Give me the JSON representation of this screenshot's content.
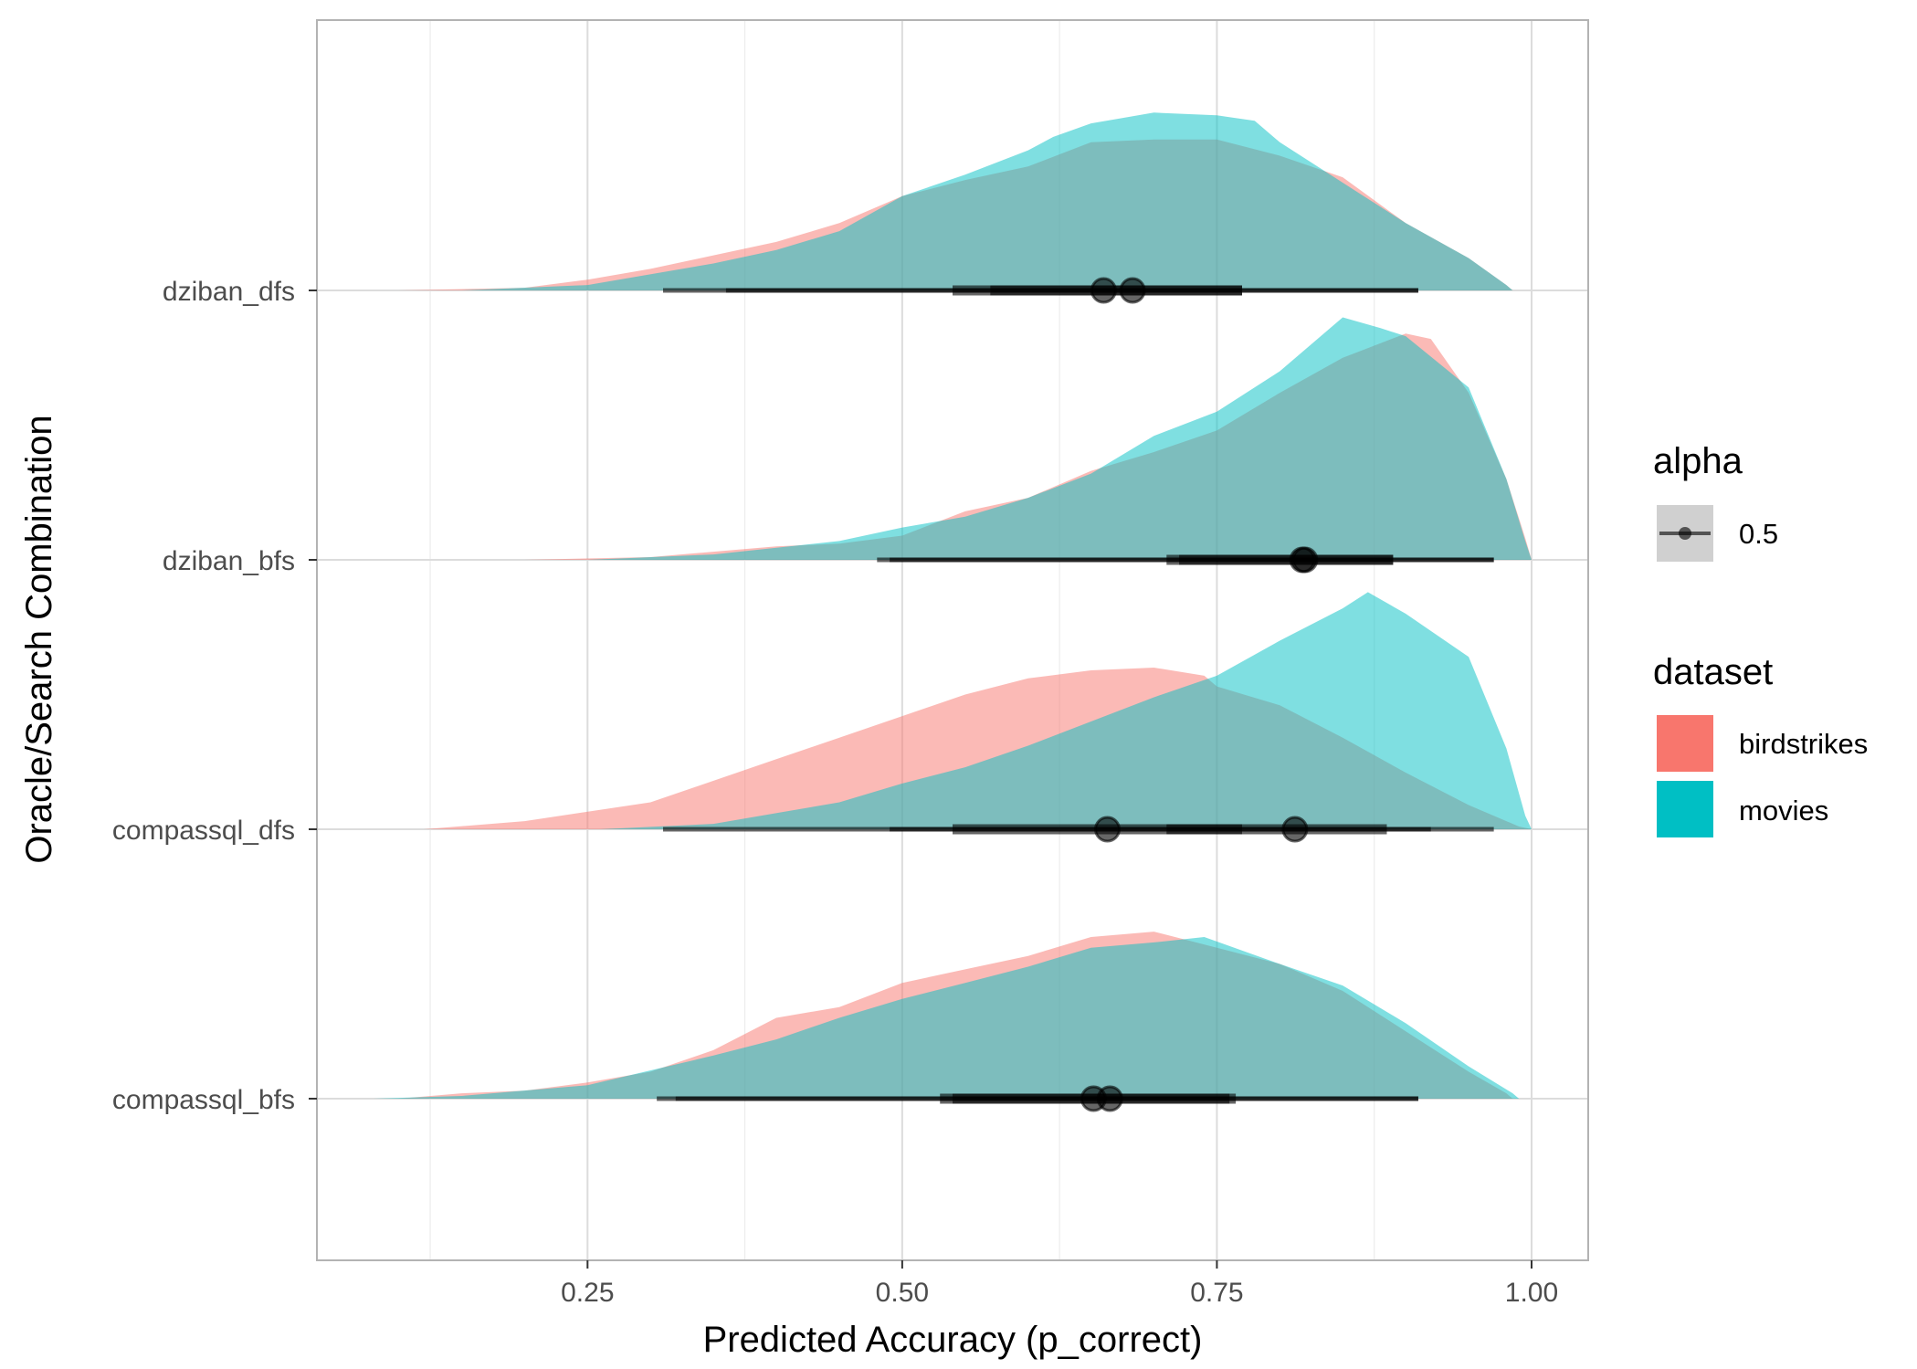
{
  "chart_data": {
    "type": "area",
    "subtype": "ridgeline-halfeye",
    "title": "",
    "xlabel": "Predicted Accuracy (p_correct)",
    "ylabel": "Oracle/Search Combination",
    "xlim": [
      0.035,
      1.045
    ],
    "x_ticks": [
      0.25,
      0.5,
      0.75,
      1.0
    ],
    "x_tick_labels": [
      "0.25",
      "0.50",
      "0.75",
      "1.00"
    ],
    "x_minor_ticks": [
      0.125,
      0.375,
      0.625,
      0.875
    ],
    "grid": true,
    "legend_position": "right",
    "categories": [
      "compassql_bfs",
      "compassql_dfs",
      "dziban_bfs",
      "dziban_dfs"
    ],
    "legend": {
      "alpha": {
        "title": "alpha",
        "entries": [
          "0.5"
        ]
      },
      "dataset": {
        "title": "dataset",
        "entries": [
          {
            "name": "birdstrikes",
            "color": "#F8766D"
          },
          {
            "name": "movies",
            "color": "#00BFC4"
          }
        ]
      }
    },
    "series": [
      {
        "name": "birdstrikes",
        "color": "#F8766D",
        "rows": {
          "compassql_bfs": {
            "density": [
              [
                0.1,
                0
              ],
              [
                0.15,
                0.02
              ],
              [
                0.2,
                0.03
              ],
              [
                0.25,
                0.06
              ],
              [
                0.3,
                0.1
              ],
              [
                0.35,
                0.18
              ],
              [
                0.4,
                0.3
              ],
              [
                0.45,
                0.34
              ],
              [
                0.5,
                0.43
              ],
              [
                0.55,
                0.48
              ],
              [
                0.6,
                0.53
              ],
              [
                0.65,
                0.6
              ],
              [
                0.7,
                0.62
              ],
              [
                0.75,
                0.56
              ],
              [
                0.8,
                0.5
              ],
              [
                0.85,
                0.4
              ],
              [
                0.9,
                0.25
              ],
              [
                0.95,
                0.1
              ],
              [
                0.98,
                0.02
              ],
              [
                0.985,
                0
              ]
            ],
            "median": 0.652,
            "interval_66": [
              0.53,
              0.765
            ],
            "interval_95": [
              0.305,
              0.91
            ]
          },
          "compassql_dfs": {
            "density": [
              [
                0.12,
                0
              ],
              [
                0.2,
                0.03
              ],
              [
                0.3,
                0.1
              ],
              [
                0.4,
                0.26
              ],
              [
                0.45,
                0.34
              ],
              [
                0.5,
                0.42
              ],
              [
                0.55,
                0.5
              ],
              [
                0.6,
                0.56
              ],
              [
                0.65,
                0.59
              ],
              [
                0.7,
                0.6
              ],
              [
                0.74,
                0.57
              ],
              [
                0.75,
                0.53
              ],
              [
                0.8,
                0.46
              ],
              [
                0.85,
                0.34
              ],
              [
                0.9,
                0.21
              ],
              [
                0.95,
                0.09
              ],
              [
                0.99,
                0.01
              ],
              [
                1.0,
                0
              ]
            ],
            "median": 0.663,
            "interval_66": [
              0.54,
              0.77
            ],
            "interval_95": [
              0.31,
              0.92
            ]
          },
          "dziban_bfs": {
            "density": [
              [
                0.2,
                0
              ],
              [
                0.3,
                0.01
              ],
              [
                0.4,
                0.05
              ],
              [
                0.45,
                0.06
              ],
              [
                0.5,
                0.09
              ],
              [
                0.55,
                0.18
              ],
              [
                0.6,
                0.23
              ],
              [
                0.65,
                0.33
              ],
              [
                0.7,
                0.4
              ],
              [
                0.75,
                0.48
              ],
              [
                0.8,
                0.62
              ],
              [
                0.85,
                0.75
              ],
              [
                0.9,
                0.84
              ],
              [
                0.92,
                0.82
              ],
              [
                0.95,
                0.62
              ],
              [
                0.98,
                0.3
              ],
              [
                0.995,
                0.08
              ],
              [
                1.0,
                0
              ]
            ],
            "median": 0.82,
            "interval_66": [
              0.71,
              0.89
            ],
            "interval_95": [
              0.48,
              0.97
            ]
          },
          "dziban_dfs": {
            "density": [
              [
                0.1,
                0
              ],
              [
                0.2,
                0.01
              ],
              [
                0.25,
                0.04
              ],
              [
                0.3,
                0.08
              ],
              [
                0.35,
                0.13
              ],
              [
                0.4,
                0.18
              ],
              [
                0.45,
                0.25
              ],
              [
                0.5,
                0.35
              ],
              [
                0.55,
                0.41
              ],
              [
                0.6,
                0.46
              ],
              [
                0.65,
                0.55
              ],
              [
                0.7,
                0.56
              ],
              [
                0.75,
                0.56
              ],
              [
                0.8,
                0.5
              ],
              [
                0.85,
                0.42
              ],
              [
                0.9,
                0.25
              ],
              [
                0.95,
                0.12
              ],
              [
                0.98,
                0.02
              ],
              [
                0.985,
                0
              ]
            ],
            "median": 0.66,
            "interval_66": [
              0.54,
              0.77
            ],
            "interval_95": [
              0.31,
              0.91
            ]
          }
        }
      },
      {
        "name": "movies",
        "color": "#00BFC4",
        "rows": {
          "compassql_bfs": {
            "density": [
              [
                0.08,
                0
              ],
              [
                0.15,
                0.01
              ],
              [
                0.25,
                0.05
              ],
              [
                0.35,
                0.16
              ],
              [
                0.4,
                0.22
              ],
              [
                0.45,
                0.3
              ],
              [
                0.5,
                0.37
              ],
              [
                0.55,
                0.43
              ],
              [
                0.6,
                0.49
              ],
              [
                0.65,
                0.56
              ],
              [
                0.7,
                0.58
              ],
              [
                0.74,
                0.6
              ],
              [
                0.8,
                0.5
              ],
              [
                0.85,
                0.42
              ],
              [
                0.9,
                0.28
              ],
              [
                0.95,
                0.12
              ],
              [
                0.985,
                0.02
              ],
              [
                0.99,
                0
              ]
            ],
            "median": 0.665,
            "interval_66": [
              0.54,
              0.76
            ],
            "interval_95": [
              0.32,
              0.91
            ]
          },
          "compassql_dfs": {
            "density": [
              [
                0.26,
                0
              ],
              [
                0.35,
                0.02
              ],
              [
                0.45,
                0.1
              ],
              [
                0.5,
                0.17
              ],
              [
                0.55,
                0.23
              ],
              [
                0.6,
                0.31
              ],
              [
                0.65,
                0.4
              ],
              [
                0.7,
                0.49
              ],
              [
                0.75,
                0.57
              ],
              [
                0.8,
                0.7
              ],
              [
                0.85,
                0.82
              ],
              [
                0.87,
                0.88
              ],
              [
                0.9,
                0.8
              ],
              [
                0.95,
                0.64
              ],
              [
                0.98,
                0.3
              ],
              [
                0.995,
                0.05
              ],
              [
                1.0,
                0
              ]
            ],
            "median": 0.812,
            "interval_66": [
              0.71,
              0.885
            ],
            "interval_95": [
              0.49,
              0.97
            ]
          },
          "dziban_bfs": {
            "density": [
              [
                0.25,
                0
              ],
              [
                0.35,
                0.02
              ],
              [
                0.45,
                0.07
              ],
              [
                0.5,
                0.12
              ],
              [
                0.55,
                0.16
              ],
              [
                0.6,
                0.23
              ],
              [
                0.65,
                0.32
              ],
              [
                0.7,
                0.46
              ],
              [
                0.75,
                0.55
              ],
              [
                0.8,
                0.7
              ],
              [
                0.85,
                0.9
              ],
              [
                0.88,
                0.86
              ],
              [
                0.9,
                0.83
              ],
              [
                0.95,
                0.64
              ],
              [
                0.98,
                0.3
              ],
              [
                0.995,
                0.07
              ],
              [
                1.0,
                0
              ]
            ],
            "median": 0.818,
            "interval_66": [
              0.72,
              0.89
            ],
            "interval_95": [
              0.49,
              0.97
            ]
          },
          "dziban_dfs": {
            "density": [
              [
                0.15,
                0
              ],
              [
                0.25,
                0.02
              ],
              [
                0.35,
                0.1
              ],
              [
                0.4,
                0.15
              ],
              [
                0.45,
                0.22
              ],
              [
                0.5,
                0.35
              ],
              [
                0.55,
                0.43
              ],
              [
                0.6,
                0.52
              ],
              [
                0.62,
                0.57
              ],
              [
                0.65,
                0.62
              ],
              [
                0.7,
                0.66
              ],
              [
                0.75,
                0.65
              ],
              [
                0.78,
                0.63
              ],
              [
                0.8,
                0.55
              ],
              [
                0.85,
                0.4
              ],
              [
                0.9,
                0.25
              ],
              [
                0.95,
                0.12
              ],
              [
                0.98,
                0.02
              ],
              [
                0.985,
                0
              ]
            ],
            "median": 0.683,
            "interval_66": [
              0.57,
              0.77
            ],
            "interval_95": [
              0.36,
              0.91
            ]
          }
        }
      }
    ]
  }
}
